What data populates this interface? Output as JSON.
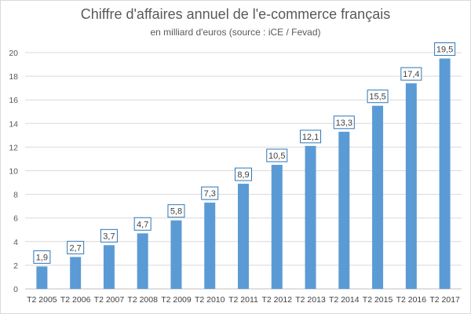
{
  "chart_data": {
    "type": "bar",
    "title": "Chiffre d'affaires annuel de l'e-commerce français",
    "subtitle": "en milliard d'euros (source : iCE / Fevad)",
    "xlabel": "",
    "ylabel": "",
    "categories": [
      "T2 2005",
      "T2 2006",
      "T2 2007",
      "T2 2008",
      "T2 2009",
      "T2 2010",
      "T2 2011",
      "T2 2012",
      "T2 2013",
      "T2 2014",
      "T2 2015",
      "T2 2016",
      "T2 2017"
    ],
    "values": [
      1.9,
      2.7,
      3.7,
      4.7,
      5.8,
      7.3,
      8.9,
      10.5,
      12.1,
      13.3,
      15.5,
      17.4,
      19.5
    ],
    "data_labels": [
      "1,9",
      "2,7",
      "3,7",
      "4,7",
      "5,8",
      "7,3",
      "8,9",
      "10,5",
      "12,1",
      "13,3",
      "15,5",
      "17,4",
      "19,5"
    ],
    "ylim": [
      0,
      20
    ],
    "yticks": [
      0,
      2,
      4,
      6,
      8,
      10,
      12,
      14,
      16,
      18,
      20
    ],
    "grid": true,
    "legend": "none",
    "colors": {
      "bar": "#5b9bd5",
      "grid": "#d9d9d9",
      "label_border": "#2e75b6"
    }
  }
}
